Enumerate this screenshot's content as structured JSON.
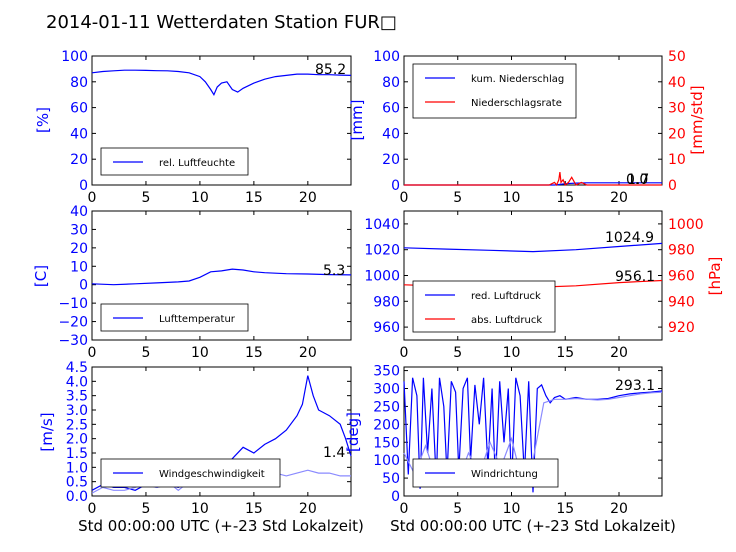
{
  "title": "2014-01-11 Wetterdaten Station FUR□",
  "colors": {
    "blue": "#0000ff",
    "red": "#ff0000",
    "lightblue": "#8a8aff"
  },
  "xlabel": "Std 00:00:00 UTC (+-23 Std Lokalzeit)",
  "chart_data": [
    {
      "id": "humidity",
      "type": "line",
      "xlim": [
        0,
        24
      ],
      "ylim": [
        0,
        100
      ],
      "xticks": [
        "0",
        "5",
        "10",
        "15",
        "20"
      ],
      "yticks": [
        "0",
        "20",
        "40",
        "60",
        "80",
        "100"
      ],
      "ylabel": "[%]",
      "legend": [
        "rel. Luftfeuchte"
      ],
      "legend_position": "lower-left",
      "annotation": "85.2",
      "series": [
        {
          "name": "rel. Luftfeuchte",
          "color": "blue",
          "x": [
            0,
            1,
            2,
            3,
            4,
            5,
            6,
            7,
            8,
            9,
            10,
            10.5,
            11,
            11.3,
            11.6,
            12,
            12.5,
            13,
            13.5,
            14,
            14.5,
            15,
            16,
            17,
            18,
            19,
            20,
            21,
            22,
            23,
            24
          ],
          "y": [
            87,
            88,
            88.5,
            89,
            89,
            88.8,
            88.6,
            88.5,
            88,
            87,
            84,
            80,
            74,
            70,
            76,
            79,
            80,
            74,
            72,
            75,
            77,
            79,
            82,
            84,
            85,
            86,
            86,
            85.5,
            85.5,
            85.2,
            85
          ]
        }
      ]
    },
    {
      "id": "precip",
      "type": "line",
      "xlim": [
        0,
        24
      ],
      "ylim": [
        0,
        100
      ],
      "y2lim": [
        0,
        50
      ],
      "xticks": [
        "0",
        "5",
        "10",
        "15",
        "20"
      ],
      "yticks": [
        "0",
        "20",
        "40",
        "60",
        "80",
        "100"
      ],
      "y2ticks": [
        "0",
        "10",
        "20",
        "30",
        "40",
        "50"
      ],
      "ylabel": "[mm]",
      "y2label": "[mm/std]",
      "legend": [
        "kum. Niederschlag",
        "Niederschlagsrate"
      ],
      "legend_position": "upper-left",
      "annotation": "1.7",
      "annotation2": "0.0",
      "series": [
        {
          "name": "kum. Niederschlag",
          "color": "blue",
          "axis": "left",
          "x": [
            0,
            14,
            14.5,
            15,
            16,
            17,
            24
          ],
          "y": [
            0,
            0,
            0.5,
            1,
            1.5,
            1.7,
            1.7
          ]
        },
        {
          "name": "Niederschlagsrate",
          "color": "red",
          "axis": "right",
          "x": [
            0,
            13.5,
            14,
            14.2,
            14.4,
            14.5,
            14.6,
            14.8,
            15,
            15.3,
            15.6,
            16,
            16.5,
            17,
            24
          ],
          "y": [
            0,
            0,
            1,
            0,
            2,
            5,
            1,
            2,
            0,
            1,
            3,
            0,
            1,
            0,
            0
          ]
        }
      ]
    },
    {
      "id": "temperature",
      "type": "line",
      "xlim": [
        0,
        24
      ],
      "ylim": [
        -30,
        40
      ],
      "xticks": [
        "0",
        "5",
        "10",
        "15",
        "20"
      ],
      "yticks": [
        "−30",
        "−20",
        "−10",
        "0",
        "10",
        "20",
        "30",
        "40"
      ],
      "ylabel": "[C]",
      "legend": [
        "Lufttemperatur"
      ],
      "legend_position": "lower-left",
      "annotation": "5.3",
      "series": [
        {
          "name": "Lufttemperatur",
          "color": "blue",
          "x": [
            0,
            2,
            4,
            6,
            8,
            9,
            10,
            11,
            12,
            13,
            14,
            15,
            16,
            18,
            20,
            22,
            24
          ],
          "y": [
            0.5,
            0,
            0.5,
            1,
            1.5,
            2,
            4,
            7,
            7.5,
            8.5,
            8,
            7,
            6.5,
            6,
            5.8,
            5.5,
            5.3
          ]
        }
      ]
    },
    {
      "id": "pressure",
      "type": "line",
      "xlim": [
        0,
        24
      ],
      "ylim": [
        950,
        1050
      ],
      "y2lim": [
        910,
        1010
      ],
      "xticks": [
        "0",
        "5",
        "10",
        "15",
        "20"
      ],
      "yticks": [
        "960",
        "980",
        "1000",
        "1020",
        "1040"
      ],
      "y2ticks": [
        "920",
        "940",
        "960",
        "980",
        "1000"
      ],
      "y2label": "[hPa]",
      "legend": [
        "red. Luftdruck",
        "abs. Luftdruck"
      ],
      "legend_position": "lower-left",
      "annotation": "1024.9",
      "annotation2": "956.1",
      "series": [
        {
          "name": "red. Luftdruck",
          "color": "blue",
          "axis": "left",
          "x": [
            0,
            4,
            8,
            12,
            16,
            20,
            24
          ],
          "y": [
            1021.5,
            1020.5,
            1019.5,
            1018.5,
            1020,
            1022.5,
            1024.9
          ]
        },
        {
          "name": "abs. Luftdruck",
          "color": "red",
          "axis": "right",
          "x": [
            0,
            4,
            8,
            12,
            16,
            20,
            24
          ],
          "y": [
            952.8,
            951.8,
            950.8,
            950.8,
            952,
            954.5,
            956.1
          ]
        }
      ]
    },
    {
      "id": "wind",
      "type": "line",
      "xlim": [
        0,
        24
      ],
      "ylim": [
        0,
        4.5
      ],
      "xticks": [
        "0",
        "5",
        "10",
        "15",
        "20"
      ],
      "yticks": [
        "0.0",
        "0.5",
        "1.0",
        "1.5",
        "2.0",
        "2.5",
        "3.0",
        "3.5",
        "4.0",
        "4.5"
      ],
      "ylabel": "[m/s]",
      "legend": [
        "Windgeschwindigkeit"
      ],
      "legend_position": "lower-left",
      "annotation": "1.4",
      "series": [
        {
          "name": "Windgeschwindigkeit",
          "color": "blue",
          "x": [
            0,
            1,
            2,
            3,
            4,
            5,
            6,
            7,
            8,
            9,
            10,
            11,
            12,
            13,
            14,
            15,
            16,
            17,
            18,
            19,
            19.5,
            20,
            20.5,
            21,
            22,
            23,
            23.5,
            24
          ],
          "y": [
            0.2,
            0.4,
            0.3,
            0.3,
            0.2,
            0.4,
            0.3,
            0.4,
            0.3,
            0.5,
            0.6,
            0.7,
            1,
            1.3,
            1.7,
            1.5,
            1.8,
            2,
            2.3,
            2.8,
            3.2,
            4.2,
            3.5,
            3,
            2.8,
            2.5,
            2,
            1.4
          ]
        },
        {
          "name": "",
          "color": "lightblue",
          "x": [
            0,
            1,
            2,
            3,
            4,
            5,
            6,
            7,
            8,
            9,
            10,
            11,
            12,
            13,
            14,
            15,
            16,
            17,
            18,
            19,
            20,
            21,
            22,
            23,
            24
          ],
          "y": [
            0.1,
            0.3,
            0.2,
            0.2,
            0.3,
            0.5,
            0.3,
            0.5,
            0.2,
            0.5,
            0.6,
            0.8,
            0.6,
            0.5,
            0.7,
            0.6,
            0.8,
            0.8,
            0.7,
            0.8,
            0.9,
            0.8,
            0.8,
            0.7,
            0.7
          ]
        }
      ]
    },
    {
      "id": "winddir",
      "type": "line",
      "xlim": [
        0,
        24
      ],
      "ylim": [
        0,
        360
      ],
      "xticks": [
        "0",
        "5",
        "10",
        "15",
        "20"
      ],
      "yticks": [
        "0",
        "50",
        "100",
        "150",
        "200",
        "250",
        "300",
        "350"
      ],
      "ylabel": "[deg]",
      "legend": [
        "Windrichtung"
      ],
      "legend_position": "lower-left",
      "annotation": "293.1",
      "series": [
        {
          "name": "Windrichtung",
          "color": "blue",
          "x": [
            0,
            0.4,
            0.8,
            1.2,
            1.5,
            1.8,
            2.2,
            2.6,
            3,
            3.3,
            3.7,
            4,
            4.4,
            4.8,
            5.1,
            5.5,
            5.9,
            6.2,
            6.6,
            7,
            7.4,
            7.8,
            8.2,
            8.5,
            8.9,
            9.3,
            9.7,
            10,
            10.4,
            10.8,
            11.2,
            11.6,
            12,
            12.4,
            12.8,
            13.2,
            13.6,
            14,
            14.5,
            15,
            16,
            17,
            18,
            19,
            20,
            21,
            22,
            23,
            24
          ],
          "y": [
            320,
            60,
            330,
            280,
            20,
            330,
            120,
            300,
            40,
            330,
            250,
            60,
            320,
            290,
            70,
            300,
            330,
            100,
            310,
            200,
            330,
            80,
            300,
            40,
            320,
            150,
            300,
            30,
            330,
            280,
            60,
            320,
            10,
            300,
            310,
            280,
            260,
            275,
            280,
            270,
            275,
            270,
            270,
            272,
            280,
            285,
            288,
            290,
            293
          ]
        },
        {
          "name": "",
          "color": "lightblue",
          "x": [
            0,
            1,
            2,
            3,
            4,
            5,
            6,
            7,
            8,
            9,
            10,
            11,
            12,
            13,
            14,
            15,
            16,
            17,
            18,
            19,
            20,
            21,
            22,
            23,
            24
          ],
          "y": [
            120,
            60,
            140,
            50,
            90,
            40,
            120,
            60,
            150,
            80,
            160,
            40,
            100,
            260,
            270,
            270,
            272,
            270,
            268,
            270,
            275,
            280,
            285,
            288,
            290
          ]
        }
      ]
    }
  ]
}
